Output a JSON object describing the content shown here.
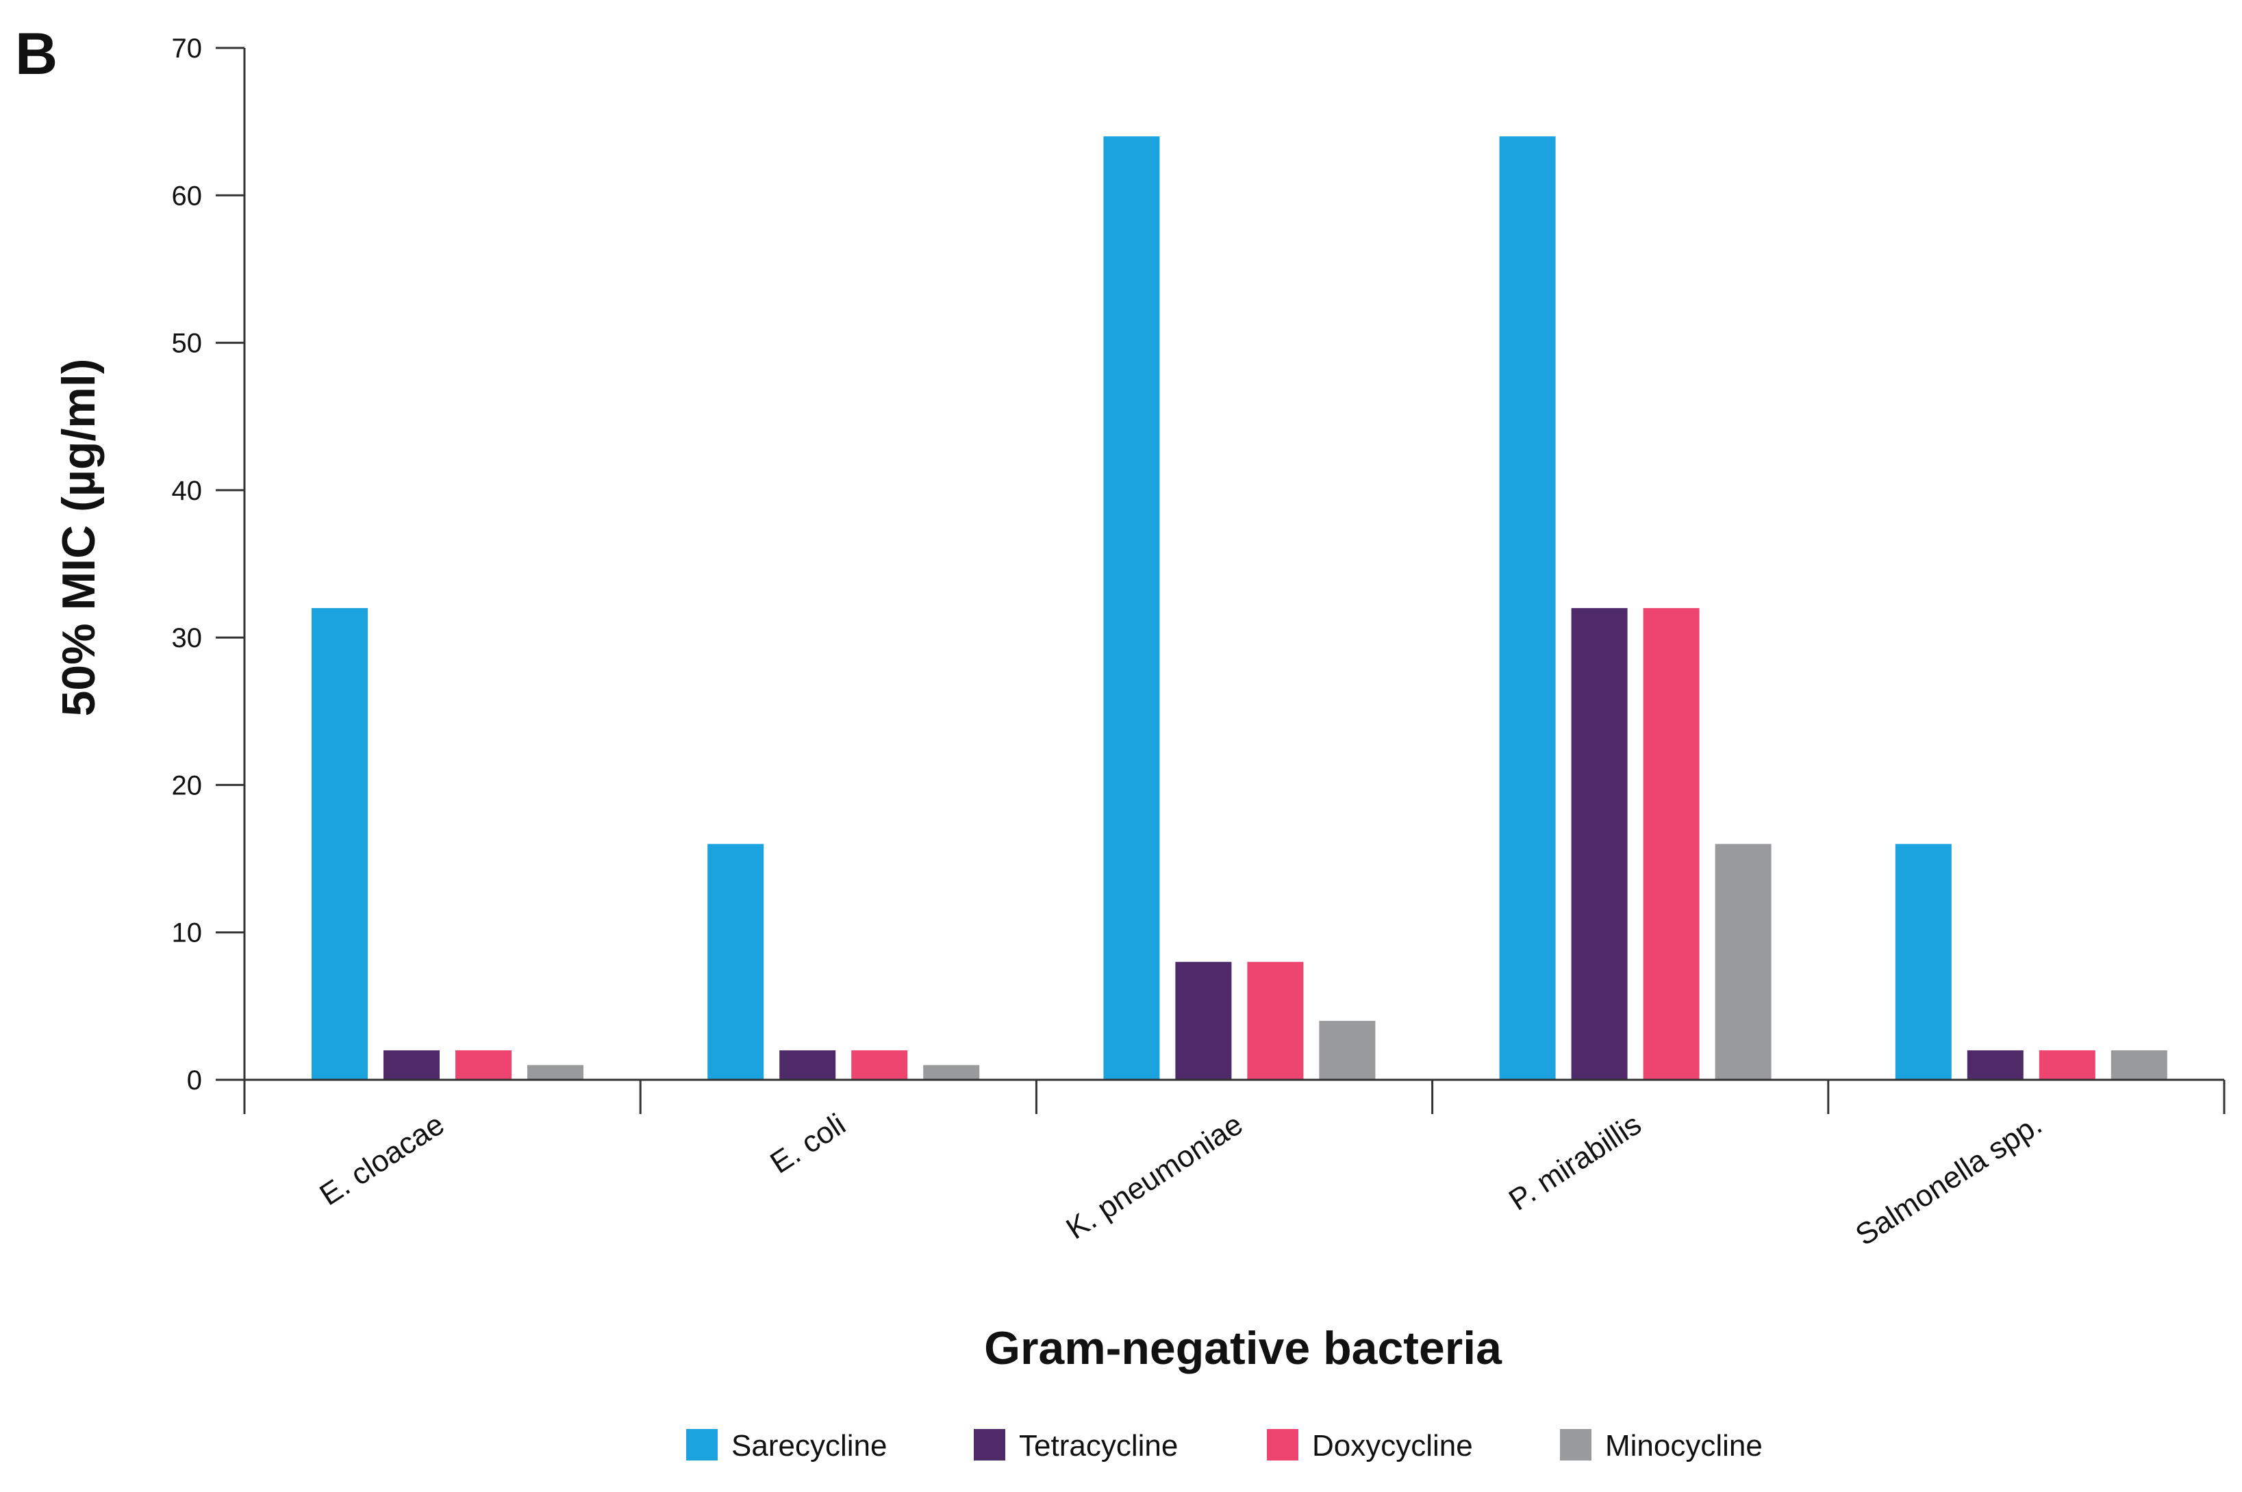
{
  "panel_label": "B",
  "chart_data": {
    "type": "bar",
    "title": "",
    "xlabel": "Gram-negative bacteria",
    "ylabel": "50% MIC (µg/ml)",
    "ylim": [
      0,
      70
    ],
    "yticks": [
      0,
      10,
      20,
      30,
      40,
      50,
      60,
      70
    ],
    "grid": false,
    "legend_position": "bottom",
    "categories": [
      "E. cloacae",
      "E. coli",
      "K. pneumoniae",
      "P. mirabillis",
      "Salmonella spp."
    ],
    "series": [
      {
        "name": "Sarecycline",
        "color": "#1aa3de",
        "values": [
          32,
          16,
          64,
          64,
          16
        ]
      },
      {
        "name": "Tetracycline",
        "color": "#4f2a68",
        "values": [
          2,
          2,
          8,
          32,
          2
        ]
      },
      {
        "name": "Doxycycline",
        "color": "#ee4570",
        "values": [
          2,
          2,
          8,
          32,
          2
        ]
      },
      {
        "name": "Minocycline",
        "color": "#999a9c",
        "values": [
          1,
          1,
          4,
          16,
          2
        ]
      }
    ]
  }
}
